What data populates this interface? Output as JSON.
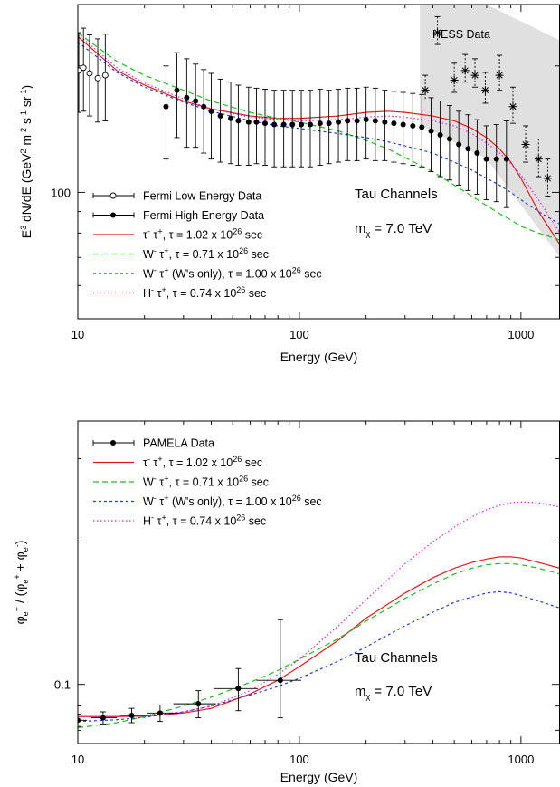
{
  "chart_data": [
    {
      "type": "line",
      "xscale": "log",
      "yscale": "log",
      "xlim": [
        10,
        1500
      ],
      "ylim": [
        50,
        280
      ],
      "xlabel": "Energy (GeV)",
      "ylabel": "E<sup>3</sup> dN/dE (GeV<sup>2</sup> m<sup>-2</sup> s<sup>-1</sup> sr<sup>-1</sup>)",
      "x_tick_labels": [
        {
          "x": 10,
          "label": "10"
        },
        {
          "x": 100,
          "label": "100"
        },
        {
          "x": 1000,
          "label": "1000"
        }
      ],
      "y_tick_labels": [
        {
          "y": 100,
          "label": "100"
        }
      ],
      "annotations": {
        "channel": "Tau Channels",
        "mass": "m<sub>χ</sub> = 7.0 TeV",
        "hess": "HESS Data"
      },
      "hess_band": {
        "x": [
          350,
          350,
          700,
          1500,
          1500
        ],
        "y_low": [
          145,
          145,
          120,
          70,
          60
        ],
        "y_high": [
          270,
          280,
          280,
          230,
          230
        ],
        "color": "#e0e0e0"
      },
      "series": [
        {
          "name": "Fermi Low Energy Data",
          "kind": "points",
          "marker": "open-circle",
          "x": [
            10.1,
            10.6,
            11.3,
            12.3,
            13.3
          ],
          "y": [
            195,
            198,
            192,
            187,
            190
          ],
          "yerr": [
            [
              40,
              42,
              40,
              40,
              42
            ],
            [
              45,
              48,
              45,
              45,
              48
            ]
          ]
        },
        {
          "name": "Fermi High Energy Data",
          "kind": "points",
          "marker": "filled-circle",
          "x": [
            25,
            28,
            31,
            34,
            37,
            40,
            44,
            49,
            53,
            59,
            64,
            70,
            77,
            85,
            93,
            102,
            112,
            124,
            136,
            150,
            165,
            182,
            200,
            220,
            243,
            267,
            294,
            325,
            357,
            393,
            432,
            476,
            524,
            577,
            634,
            698,
            775,
            860
          ],
          "y": [
            160,
            175,
            168,
            165,
            160,
            156,
            152,
            150,
            148,
            147,
            147,
            146,
            145,
            145,
            145,
            145,
            145,
            146,
            146,
            147,
            148,
            148,
            149,
            148,
            147,
            146,
            145,
            144,
            143,
            140,
            137,
            134,
            130,
            127,
            124,
            120,
            120,
            120
          ],
          "yerr": [
            [
              40,
              40,
              40,
              37,
              36,
              36,
              34,
              33,
              32,
              31,
              30,
              30,
              30,
              30,
              30,
              30,
              30,
              30,
              29,
              29,
              29,
              29,
              29,
              29,
              28,
              28,
              28,
              28,
              28,
              28,
              28,
              27,
              26,
              26,
              25,
              24,
              25,
              28
            ],
            [
              40,
              40,
              40,
              37,
              36,
              36,
              34,
              33,
              32,
              31,
              30,
              30,
              30,
              30,
              30,
              30,
              30,
              30,
              29,
              29,
              29,
              29,
              29,
              29,
              28,
              28,
              28,
              28,
              28,
              28,
              28,
              27,
              26,
              26,
              25,
              24,
              25,
              28
            ]
          ]
        },
        {
          "name": "HESS Data",
          "kind": "points",
          "marker": "star",
          "x": [
            370,
            420,
            500,
            560,
            620,
            690,
            800,
            920,
            1050,
            1200,
            1320
          ],
          "y": [
            175,
            240,
            185,
            195,
            190,
            175,
            190,
            160,
            130,
            120,
            108
          ],
          "yerr": [
            [
              10,
              15,
              12,
              12,
              12,
              12,
              15,
              14,
              12,
              11,
              10
            ],
            [
              15,
              22,
              18,
              18,
              18,
              18,
              22,
              18,
              14,
              14,
              12
            ]
          ]
        },
        {
          "name": "τ<sup>-</sup> τ<sup>+</sup>, τ = 1.02 x 10<sup>26</sup> sec",
          "kind": "line",
          "color": "#e31a1c",
          "dash": "",
          "x": [
            10,
            15,
            20,
            30,
            40,
            60,
            80,
            100,
            150,
            200,
            250,
            300,
            400,
            500,
            600,
            700,
            800,
            900,
            1000,
            1200,
            1500
          ],
          "y": [
            235,
            195,
            180,
            165,
            158,
            152,
            150,
            150,
            152,
            155,
            156,
            155,
            152,
            148,
            142,
            135,
            127,
            118,
            108,
            90,
            75
          ]
        },
        {
          "name": "W<sup>-</sup> τ<sup>+</sup>, τ = 0.71 x 10<sup>26</sup> sec",
          "kind": "line",
          "color": "#22bb22",
          "dash": "6,4",
          "x": [
            10,
            15,
            20,
            30,
            40,
            60,
            80,
            100,
            150,
            200,
            250,
            300,
            400,
            500,
            600,
            700,
            800,
            900,
            1000,
            1200,
            1500
          ],
          "y": [
            240,
            205,
            190,
            175,
            165,
            155,
            150,
            147,
            140,
            133,
            127,
            121,
            112,
            104,
            98,
            93,
            89,
            86,
            83,
            80,
            77
          ]
        },
        {
          "name": "W<sup>-</sup> τ<sup>+</sup> (W's only), τ = 1.00 x 10<sup>26</sup> sec",
          "kind": "line",
          "color": "#1f3fd0",
          "dash": "3,3",
          "x": [
            10,
            15,
            20,
            30,
            40,
            60,
            80,
            100,
            150,
            200,
            250,
            300,
            400,
            500,
            600,
            700,
            800,
            900,
            1000,
            1200,
            1500
          ],
          "y": [
            228,
            193,
            178,
            164,
            156,
            148,
            144,
            142,
            138,
            135,
            132,
            129,
            124,
            118,
            113,
            108,
            104,
            100,
            96,
            90,
            84
          ]
        },
        {
          "name": "H<sup>-</sup> τ<sup>+</sup>, τ = 0.74 x 10<sup>26</sup> sec",
          "kind": "line",
          "color": "#dd22dd",
          "dash": "1.5,2.5",
          "x": [
            10,
            15,
            20,
            30,
            40,
            60,
            80,
            100,
            150,
            200,
            250,
            300,
            400,
            500,
            600,
            700,
            800,
            900,
            1000,
            1200,
            1500
          ],
          "y": [
            238,
            198,
            182,
            167,
            158,
            151,
            149,
            148,
            149,
            151,
            152,
            151,
            148,
            144,
            138,
            131,
            124,
            117,
            110,
            96,
            80
          ]
        }
      ]
    },
    {
      "type": "line",
      "xscale": "log",
      "yscale": "log",
      "xlim": [
        10,
        1500
      ],
      "ylim": [
        0.075,
        0.36
      ],
      "xlabel": "Energy (GeV)",
      "ylabel": "φ<sub>e</sub><sup>+</sup> / (φ<sub>e</sub><sup>+</sup> + φ<sub>e</sub><sup>-</sup>)",
      "x_tick_labels": [
        {
          "x": 10,
          "label": "10"
        },
        {
          "x": 100,
          "label": "100"
        },
        {
          "x": 1000,
          "label": "1000"
        }
      ],
      "y_tick_labels": [
        {
          "y": 0.1,
          "label": "0.1"
        }
      ],
      "annotations": {
        "channel": "Tau Channels",
        "mass": "m<sub>χ</sub> = 7.0 TeV"
      },
      "series": [
        {
          "name": "PAMELA Data",
          "kind": "points",
          "marker": "filled-circle",
          "x": [
            10,
            13,
            17.5,
            23.5,
            35,
            53,
            82
          ],
          "y": [
            0.084,
            0.085,
            0.086,
            0.087,
            0.091,
            0.098,
            0.102
          ],
          "xerr": [
            [
              0.5,
              1.5,
              2,
              3,
              8,
              12,
              18
            ],
            [
              1,
              2,
              3,
              5,
              7,
              12,
              20
            ]
          ],
          "yerr": [
            [
              0.0025,
              0.0025,
              0.003,
              0.0035,
              0.006,
              0.01,
              0.017
            ],
            [
              0.0025,
              0.0025,
              0.003,
              0.0035,
              0.006,
              0.01,
              0.035
            ]
          ]
        },
        {
          "name": "τ<sup>-</sup> τ<sup>+</sup>, τ = 1.02 x 10<sup>26</sup> sec",
          "kind": "line",
          "color": "#e31a1c",
          "dash": "",
          "x": [
            10,
            15,
            20,
            30,
            40,
            60,
            80,
            100,
            150,
            200,
            300,
            400,
            500,
            600,
            700,
            800,
            900,
            1000,
            1200,
            1500
          ],
          "y": [
            0.0855,
            0.0855,
            0.0857,
            0.087,
            0.089,
            0.0955,
            0.102,
            0.109,
            0.124,
            0.138,
            0.156,
            0.168,
            0.176,
            0.181,
            0.184,
            0.186,
            0.186,
            0.185,
            0.181,
            0.176
          ]
        },
        {
          "name": "W<sup>-</sup> τ<sup>+</sup>, τ = 0.71 x 10<sup>26</sup> sec",
          "kind": "line",
          "color": "#22bb22",
          "dash": "6,4",
          "x": [
            10,
            15,
            20,
            30,
            40,
            60,
            80,
            100,
            150,
            200,
            300,
            400,
            500,
            600,
            700,
            800,
            900,
            1000,
            1200,
            1500
          ],
          "y": [
            0.081,
            0.083,
            0.0855,
            0.09,
            0.094,
            0.101,
            0.107,
            0.113,
            0.125,
            0.136,
            0.152,
            0.163,
            0.171,
            0.176,
            0.179,
            0.18,
            0.18,
            0.179,
            0.176,
            0.171
          ]
        },
        {
          "name": "W<sup>-</sup> τ<sup>+</sup> (W's only), τ = 1.00 x 10<sup>26</sup> sec",
          "kind": "line",
          "color": "#1f3fd0",
          "dash": "3,3",
          "x": [
            10,
            15,
            20,
            30,
            40,
            60,
            80,
            100,
            150,
            200,
            300,
            400,
            500,
            600,
            700,
            800,
            900,
            1000,
            1200,
            1500
          ],
          "y": [
            0.0835,
            0.0842,
            0.0852,
            0.0875,
            0.09,
            0.095,
            0.099,
            0.103,
            0.112,
            0.12,
            0.133,
            0.142,
            0.149,
            0.153,
            0.156,
            0.157,
            0.156,
            0.154,
            0.15,
            0.145
          ]
        },
        {
          "name": "H<sup>-</sup> τ<sup>+</sup>, τ = 0.74 x 10<sup>26</sup> sec",
          "kind": "line",
          "color": "#dd22dd",
          "dash": "1.5,2.5",
          "x": [
            10,
            15,
            20,
            30,
            40,
            60,
            80,
            100,
            150,
            200,
            300,
            400,
            500,
            600,
            700,
            800,
            900,
            1000,
            1200,
            1500
          ],
          "y": [
            0.0855,
            0.0856,
            0.086,
            0.0875,
            0.09,
            0.097,
            0.105,
            0.113,
            0.133,
            0.151,
            0.18,
            0.2,
            0.215,
            0.226,
            0.234,
            0.239,
            0.242,
            0.243,
            0.242,
            0.237
          ]
        }
      ]
    }
  ]
}
